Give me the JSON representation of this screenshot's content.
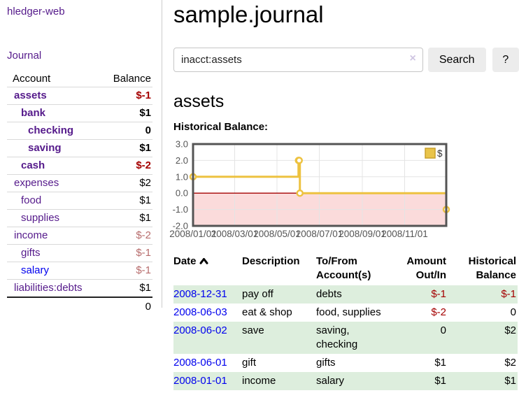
{
  "colors": {
    "link_purple": "#551a8b",
    "link_blue": "#0000ee",
    "negative_red": "#a40000",
    "negative_dim": "#b76c6c",
    "row_green": "#ddeedd",
    "button_gray": "#ececec",
    "divider_gray": "#cccccc"
  },
  "sidebar": {
    "brand": "hledger-web",
    "journal_link": "Journal",
    "accounts": {
      "header_account": "Account",
      "header_balance": "Balance",
      "rows": [
        {
          "account": "assets",
          "indent": 1,
          "bold": true,
          "link": "purple",
          "balance": "$-1",
          "balance_class": "neg"
        },
        {
          "account": "bank",
          "indent": 2,
          "bold": true,
          "link": "purple",
          "balance": "$1",
          "balance_class": "pos"
        },
        {
          "account": "checking",
          "indent": 3,
          "bold": true,
          "link": "purple",
          "balance": "0",
          "balance_class": "pos"
        },
        {
          "account": "saving",
          "indent": 3,
          "bold": true,
          "link": "purple",
          "balance": "$1",
          "balance_class": "pos"
        },
        {
          "account": "cash",
          "indent": 2,
          "bold": true,
          "link": "purple",
          "balance": "$-2",
          "balance_class": "neg"
        },
        {
          "account": "expenses",
          "indent": 1,
          "bold": false,
          "link": "purple",
          "balance": "$2",
          "balance_class": "pos"
        },
        {
          "account": "food",
          "indent": 2,
          "bold": false,
          "link": "purple",
          "balance": "$1",
          "balance_class": "pos"
        },
        {
          "account": "supplies",
          "indent": 2,
          "bold": false,
          "link": "purple",
          "balance": "$1",
          "balance_class": "pos"
        },
        {
          "account": "income",
          "indent": 1,
          "bold": false,
          "link": "purple",
          "balance": "$-2",
          "balance_class": "negdim"
        },
        {
          "account": "gifts",
          "indent": 2,
          "bold": false,
          "link": "purple",
          "balance": "$-1",
          "balance_class": "negdim"
        },
        {
          "account": "salary",
          "indent": 2,
          "bold": false,
          "link": "blue",
          "balance": "$-1",
          "balance_class": "negdim"
        },
        {
          "account": "liabilities:debts",
          "indent": 1,
          "bold": false,
          "link": "purple",
          "balance": "$1",
          "balance_class": "pos"
        }
      ],
      "total": "0"
    }
  },
  "header": {
    "title": "sample.journal"
  },
  "search": {
    "value": "inacct:assets",
    "clear_icon": "×",
    "button_label": "Search",
    "help_label": "?"
  },
  "main": {
    "account_heading": "assets",
    "chart_label": "Historical Balance:"
  },
  "chart_data": {
    "type": "line",
    "step": true,
    "title": "Historical Balance",
    "series": [
      {
        "name": "$",
        "color": "#edc240",
        "points": [
          [
            "2008-01-01",
            1
          ],
          [
            "2008-06-01",
            2
          ],
          [
            "2008-06-02",
            2
          ],
          [
            "2008-06-03",
            0
          ],
          [
            "2008-12-31",
            -1
          ]
        ]
      }
    ],
    "x_ticks": [
      "2008/01/01",
      "2008/03/01",
      "2008/05/01",
      "2008/07/01",
      "2008/09/01",
      "2008/11/01"
    ],
    "y_ticks": [
      "3.0",
      "2.0",
      "1.0",
      "0.0",
      "-1.0",
      "-2.0"
    ],
    "xlim": [
      "2008-01-01",
      "2008-12-31"
    ],
    "ylim": [
      -2,
      3
    ],
    "grid": true,
    "legend_label": "$",
    "legend_position": "top-right",
    "colors": {
      "line": "#edc240",
      "marker_fill": "#ffffff",
      "legend_fill": "#e9c44a",
      "legend_border": "#c9a02c",
      "negative_region": "#fbdbdb",
      "zero_line": "#a40000",
      "border": "#545454",
      "grid": "#e4e4e4",
      "tick_text": "#545454"
    }
  },
  "register": {
    "columns": {
      "date": "Date",
      "description": "Description",
      "accounts": "To/From Account(s)",
      "amount": "Amount Out/In",
      "balance": "Historical Balance"
    },
    "sort_direction": "ascending",
    "rows": [
      {
        "date": "2008-12-31",
        "description": "pay off",
        "accounts": "debts",
        "amount": "$-1",
        "amount_class": "neg",
        "balance": "$-1",
        "balance_class": "neg"
      },
      {
        "date": "2008-06-03",
        "description": "eat & shop",
        "accounts": "food, supplies",
        "amount": "$-2",
        "amount_class": "neg",
        "balance": "0",
        "balance_class": "pos"
      },
      {
        "date": "2008-06-02",
        "description": "save",
        "accounts": "saving, checking",
        "amount": "0",
        "amount_class": "pos",
        "balance": "$2",
        "balance_class": "pos"
      },
      {
        "date": "2008-06-01",
        "description": "gift",
        "accounts": "gifts",
        "amount": "$1",
        "amount_class": "pos",
        "balance": "$2",
        "balance_class": "pos"
      },
      {
        "date": "2008-01-01",
        "description": "income",
        "accounts": "salary",
        "amount": "$1",
        "amount_class": "pos",
        "balance": "$1",
        "balance_class": "pos"
      }
    ]
  }
}
